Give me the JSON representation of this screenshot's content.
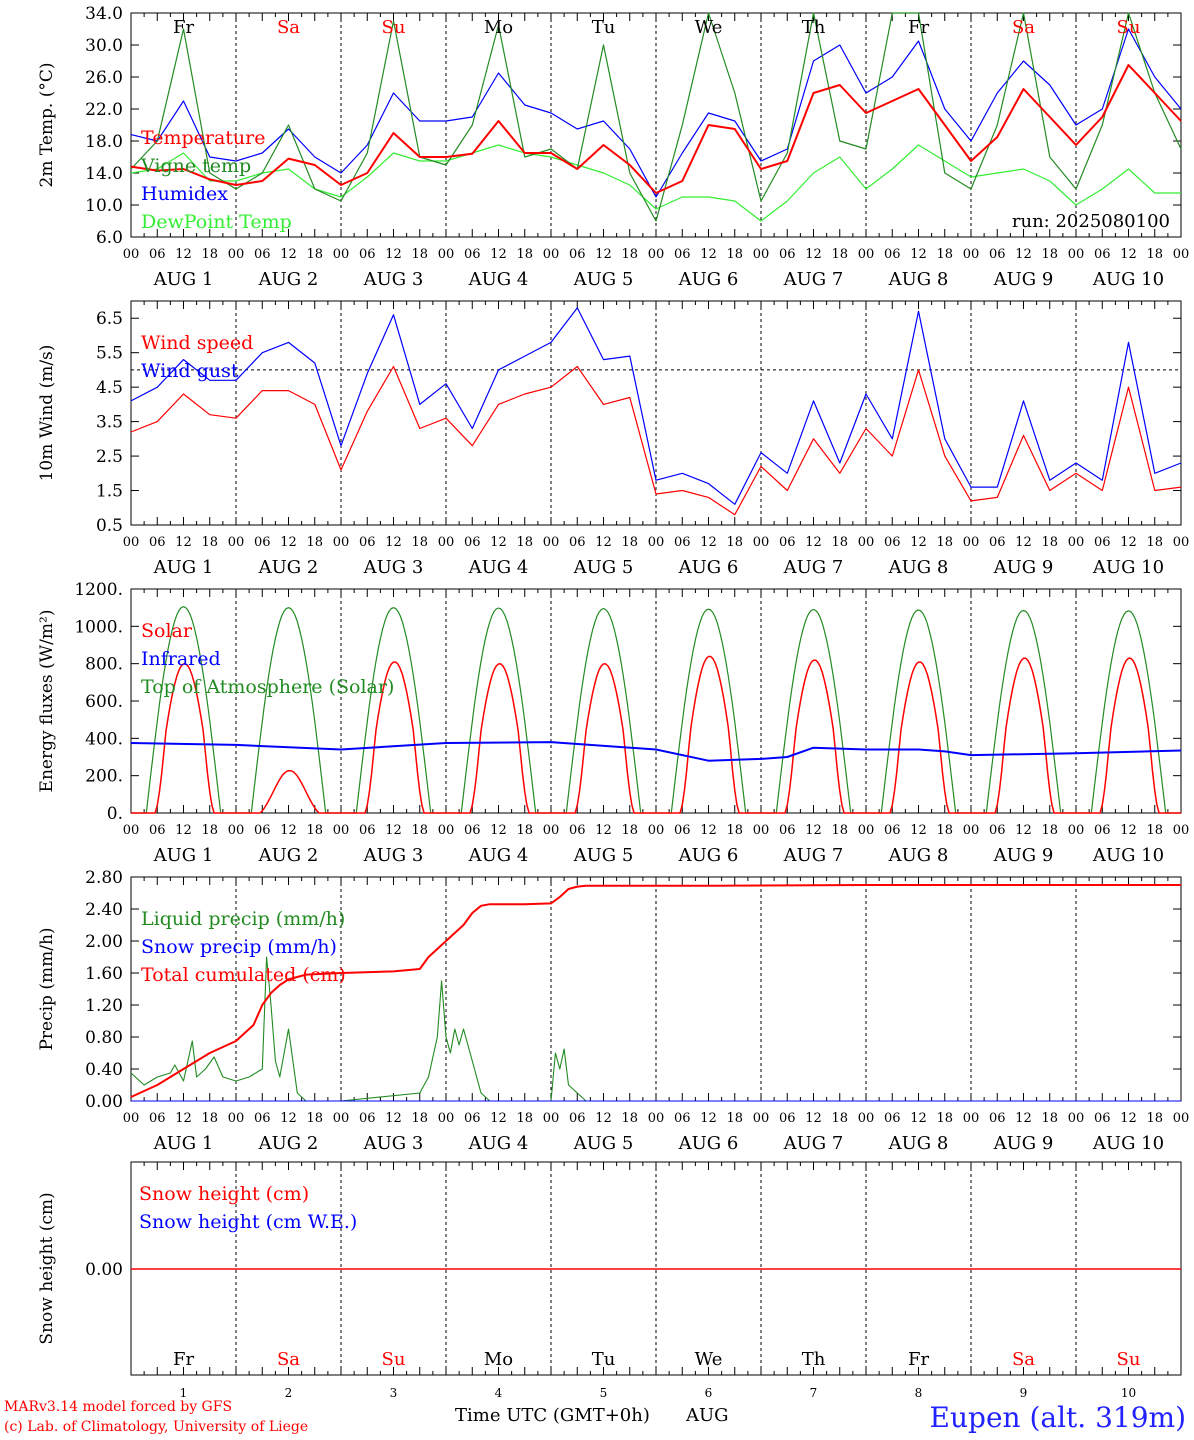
{
  "run_label": "run: 2025080100",
  "footer": {
    "credit_line1": "MARv3.14 model forced by GFS",
    "credit_line2": "(c) Lab. of Climatology, University of Liege",
    "xlabel": "Time UTC (GMT+0h)",
    "month": "AUG",
    "station": "Eupen (alt. 319m)"
  },
  "day_names": [
    "Fr",
    "Sa",
    "Su",
    "Mo",
    "Tu",
    "We",
    "Th",
    "Fr",
    "Sa",
    "Su"
  ],
  "weekend_days": [
    1,
    2,
    8,
    9
  ],
  "hour_ticks": [
    "00",
    "06",
    "12",
    "18"
  ],
  "day_labels": [
    "AUG  1",
    "AUG  2",
    "AUG  3",
    "AUG  4",
    "AUG  5",
    "AUG  6",
    "AUG  7",
    "AUG  8",
    "AUG  9",
    "AUG 10"
  ],
  "bottom_day_numbers": [
    "1",
    "2",
    "3",
    "4",
    "5",
    "6",
    "7",
    "8",
    "9",
    "10"
  ],
  "colors": {
    "red": "#ff0000",
    "green": "#228b22",
    "blue": "#0000ff",
    "lightgreen": "#33ee33",
    "text": "#000000"
  },
  "chart_data": [
    {
      "type": "line",
      "ylabel": "2m Temp. (°C)",
      "ylim": [
        6.0,
        34.0
      ],
      "yticks": [
        "6.0",
        "10.0",
        "14.0",
        "18.0",
        "22.0",
        "26.0",
        "30.0",
        "34.0"
      ],
      "x_unit": "hours since 2025-08-01 00 UTC",
      "series": [
        {
          "name": "Temperature",
          "color": "red",
          "x": [
            0,
            6,
            12,
            18,
            24,
            30,
            36,
            42,
            48,
            54,
            60,
            66,
            72,
            78,
            84,
            90,
            96,
            102,
            108,
            114,
            120,
            126,
            132,
            138,
            144,
            150,
            156,
            162,
            168,
            174,
            180,
            186,
            192,
            198,
            204,
            210,
            216,
            222,
            228,
            234,
            240
          ],
          "y": [
            14.8,
            14.3,
            14.5,
            13.2,
            12.5,
            13.0,
            15.8,
            15.0,
            12.5,
            14.0,
            19.0,
            16.0,
            16.0,
            16.4,
            20.5,
            16.5,
            16.5,
            14.5,
            17.5,
            15.0,
            11.5,
            13.0,
            20.0,
            19.5,
            14.5,
            15.5,
            24.0,
            25.0,
            21.5,
            23.0,
            24.5,
            20.0,
            15.5,
            18.5,
            24.5,
            21.0,
            17.5,
            21.0,
            27.5,
            24.0,
            20.5
          ]
        },
        {
          "name": "Vigne temp",
          "color": "green",
          "x": [
            0,
            6,
            12,
            18,
            24,
            30,
            36,
            42,
            48,
            54,
            60,
            66,
            72,
            78,
            84,
            90,
            96,
            102,
            108,
            114,
            120,
            126,
            132,
            138,
            144,
            150,
            156,
            162,
            168,
            174,
            180,
            186,
            192,
            198,
            204,
            210,
            216,
            222,
            228,
            234,
            240
          ],
          "y": [
            14.5,
            18.0,
            32.0,
            14.0,
            12.0,
            14.0,
            20.0,
            12.0,
            10.5,
            16.5,
            33.0,
            16.0,
            15.0,
            20.0,
            32.5,
            16.0,
            17.0,
            14.5,
            30.0,
            14.0,
            8.0,
            20.0,
            34.0,
            24.0,
            10.5,
            16.5,
            34.0,
            18.0,
            17.0,
            34.0,
            34.0,
            14.0,
            12.0,
            20.0,
            34.0,
            16.0,
            12.0,
            20.0,
            34.0,
            24.0,
            17.0
          ]
        },
        {
          "name": "Humidex",
          "color": "blue",
          "x": [
            0,
            6,
            12,
            18,
            24,
            30,
            36,
            42,
            48,
            54,
            60,
            66,
            72,
            78,
            84,
            90,
            96,
            102,
            108,
            114,
            120,
            126,
            132,
            138,
            144,
            150,
            156,
            162,
            168,
            174,
            180,
            186,
            192,
            198,
            204,
            210,
            216,
            222,
            228,
            234,
            240
          ],
          "y": [
            18.8,
            18.0,
            23.0,
            16.0,
            15.5,
            16.5,
            19.5,
            16.0,
            14.0,
            17.5,
            24.0,
            20.5,
            20.5,
            21.0,
            26.5,
            22.5,
            21.5,
            19.5,
            20.5,
            17.0,
            11.0,
            16.5,
            21.5,
            20.5,
            15.5,
            17.0,
            28.0,
            30.0,
            24.0,
            26.0,
            30.5,
            22.0,
            18.0,
            24.0,
            28.0,
            25.0,
            20.0,
            22.0,
            32.0,
            26.0,
            22.0
          ]
        },
        {
          "name": "DewPoint Temp",
          "color": "lightgreen",
          "x": [
            0,
            6,
            12,
            18,
            24,
            30,
            36,
            42,
            48,
            54,
            60,
            66,
            72,
            78,
            84,
            90,
            96,
            102,
            108,
            114,
            120,
            126,
            132,
            138,
            144,
            150,
            156,
            162,
            168,
            174,
            180,
            186,
            192,
            198,
            204,
            210,
            216,
            222,
            228,
            234,
            240
          ],
          "y": [
            14.0,
            14.5,
            16.5,
            13.0,
            13.0,
            14.0,
            14.5,
            12.0,
            11.0,
            13.5,
            16.5,
            15.5,
            15.5,
            16.5,
            17.5,
            16.5,
            16.0,
            15.0,
            14.0,
            12.5,
            9.5,
            11.0,
            11.0,
            10.5,
            8.0,
            10.5,
            14.0,
            16.0,
            12.0,
            14.5,
            17.5,
            15.5,
            13.5,
            14.0,
            14.5,
            13.0,
            10.0,
            12.0,
            14.5,
            11.5,
            11.5
          ]
        }
      ]
    },
    {
      "type": "line",
      "ylabel": "10m Wind (m/s)",
      "ylim": [
        0.5,
        7.0
      ],
      "yticks": [
        "0.5",
        "1.5",
        "2.5",
        "3.5",
        "4.5",
        "5.5",
        "6.5"
      ],
      "reference_line": 5.0,
      "x_unit": "hours since 2025-08-01 00 UTC",
      "series": [
        {
          "name": "Wind speed",
          "color": "red",
          "x": [
            0,
            6,
            12,
            18,
            24,
            30,
            36,
            42,
            48,
            54,
            60,
            66,
            72,
            78,
            84,
            90,
            96,
            102,
            108,
            114,
            120,
            126,
            132,
            138,
            144,
            150,
            156,
            162,
            168,
            174,
            180,
            186,
            192,
            198,
            204,
            210,
            216,
            222,
            228,
            234,
            240
          ],
          "y": [
            3.2,
            3.5,
            4.3,
            3.7,
            3.6,
            4.4,
            4.4,
            4.0,
            2.1,
            3.8,
            5.1,
            3.3,
            3.6,
            2.8,
            4.0,
            4.3,
            4.5,
            5.1,
            4.0,
            4.2,
            1.4,
            1.5,
            1.3,
            0.8,
            2.2,
            1.5,
            3.0,
            2.0,
            3.3,
            2.5,
            5.0,
            2.5,
            1.2,
            1.3,
            3.1,
            1.5,
            2.0,
            1.5,
            4.5,
            1.5,
            1.6
          ]
        },
        {
          "name": "Wind gust",
          "color": "blue",
          "x": [
            0,
            6,
            12,
            18,
            24,
            30,
            36,
            42,
            48,
            54,
            60,
            66,
            72,
            78,
            84,
            90,
            96,
            102,
            108,
            114,
            120,
            126,
            132,
            138,
            144,
            150,
            156,
            162,
            168,
            174,
            180,
            186,
            192,
            198,
            204,
            210,
            216,
            222,
            228,
            234,
            240
          ],
          "y": [
            4.1,
            4.5,
            5.3,
            4.7,
            4.7,
            5.5,
            5.8,
            5.2,
            2.8,
            4.9,
            6.6,
            4.0,
            4.6,
            3.3,
            5.0,
            5.4,
            5.8,
            6.8,
            5.3,
            5.4,
            1.8,
            2.0,
            1.7,
            1.1,
            2.6,
            2.0,
            4.1,
            2.3,
            4.3,
            3.0,
            6.7,
            3.0,
            1.6,
            1.6,
            4.1,
            1.8,
            2.3,
            1.8,
            5.8,
            2.0,
            2.3
          ]
        }
      ]
    },
    {
      "type": "line",
      "ylabel": "Energy fluxes (W/m²)",
      "ylim": [
        0,
        1200
      ],
      "yticks": [
        "0.",
        "200.",
        "400.",
        "600.",
        "800.",
        "1000.",
        "1200."
      ],
      "x_unit": "hours since 2025-08-01 00 UTC",
      "series": [
        {
          "name": "Solar",
          "color": "red",
          "day_peaks": [
            800,
            290,
            810,
            800,
            800,
            840,
            820,
            810,
            830,
            830
          ]
        },
        {
          "name": "Infrared",
          "color": "blue",
          "x": [
            0,
            24,
            48,
            72,
            96,
            120,
            132,
            144,
            150,
            156,
            168,
            180,
            186,
            192,
            216,
            240
          ],
          "y": [
            375,
            365,
            340,
            375,
            380,
            340,
            280,
            290,
            300,
            350,
            340,
            340,
            330,
            310,
            320,
            335
          ]
        },
        {
          "name": "Top of Atmosphere (Solar)",
          "color": "green",
          "day_peaks": [
            1105,
            1100,
            1100,
            1098,
            1095,
            1092,
            1090,
            1088,
            1085,
            1083
          ],
          "sunrise_hour": 3.5,
          "sunset_hour": 20.5
        }
      ]
    },
    {
      "type": "line",
      "ylabel": "Precip (mm/h)",
      "ylim": [
        0.0,
        2.8
      ],
      "yticks": [
        "0.00",
        "0.40",
        "0.80",
        "1.20",
        "1.60",
        "2.00",
        "2.40",
        "2.80"
      ],
      "x_unit": "hours since 2025-08-01 00 UTC",
      "series": [
        {
          "name": "Liquid precip (mm/h)",
          "color": "green",
          "x": [
            0,
            3,
            6,
            9,
            10,
            12,
            14,
            15,
            17,
            19,
            21,
            24,
            27,
            30,
            31,
            32,
            33,
            34,
            36,
            38,
            39,
            40,
            42,
            48,
            66,
            68,
            70,
            71,
            72,
            73,
            74,
            75,
            76,
            78,
            80,
            82,
            96,
            97,
            98,
            99,
            100,
            102,
            104,
            106,
            240
          ],
          "y": [
            0.35,
            0.2,
            0.3,
            0.35,
            0.45,
            0.25,
            0.75,
            0.3,
            0.4,
            0.55,
            0.3,
            0.25,
            0.3,
            0.4,
            1.8,
            1.2,
            0.5,
            0.3,
            0.9,
            0.1,
            0.05,
            0.0,
            0.0,
            0.0,
            0.1,
            0.3,
            0.8,
            1.5,
            0.8,
            0.6,
            0.9,
            0.7,
            0.9,
            0.5,
            0.1,
            0.0,
            0.0,
            0.6,
            0.4,
            0.65,
            0.2,
            0.1,
            0.0,
            0.0,
            0.0
          ]
        },
        {
          "name": "Snow precip (mm/h)",
          "color": "blue",
          "x": [
            0,
            240
          ],
          "y": [
            0.0,
            0.0
          ]
        },
        {
          "name": "Total cumulated (cm)",
          "color": "red",
          "x": [
            0,
            6,
            12,
            18,
            24,
            28,
            30,
            32,
            34,
            36,
            40,
            48,
            60,
            66,
            68,
            72,
            76,
            78,
            80,
            82,
            90,
            96,
            98,
            100,
            102,
            104,
            108,
            132,
            168,
            240
          ],
          "y": [
            0.05,
            0.2,
            0.4,
            0.6,
            0.75,
            0.95,
            1.2,
            1.35,
            1.45,
            1.52,
            1.58,
            1.6,
            1.62,
            1.65,
            1.8,
            2.0,
            2.2,
            2.35,
            2.44,
            2.46,
            2.46,
            2.47,
            2.55,
            2.65,
            2.68,
            2.69,
            2.69,
            2.69,
            2.7,
            2.7
          ]
        }
      ]
    },
    {
      "type": "line",
      "ylabel": "Snow height (cm)",
      "yticks": [
        "0.00"
      ],
      "x_unit": "hours since 2025-08-01 00 UTC",
      "series": [
        {
          "name": "Snow height (cm)",
          "color": "red",
          "x": [
            0,
            240
          ],
          "y": [
            0.0,
            0.0
          ]
        },
        {
          "name": "Snow height (cm W.E.)",
          "color": "blue",
          "x": [
            0,
            240
          ],
          "y": [
            0.0,
            0.0
          ]
        }
      ]
    }
  ]
}
